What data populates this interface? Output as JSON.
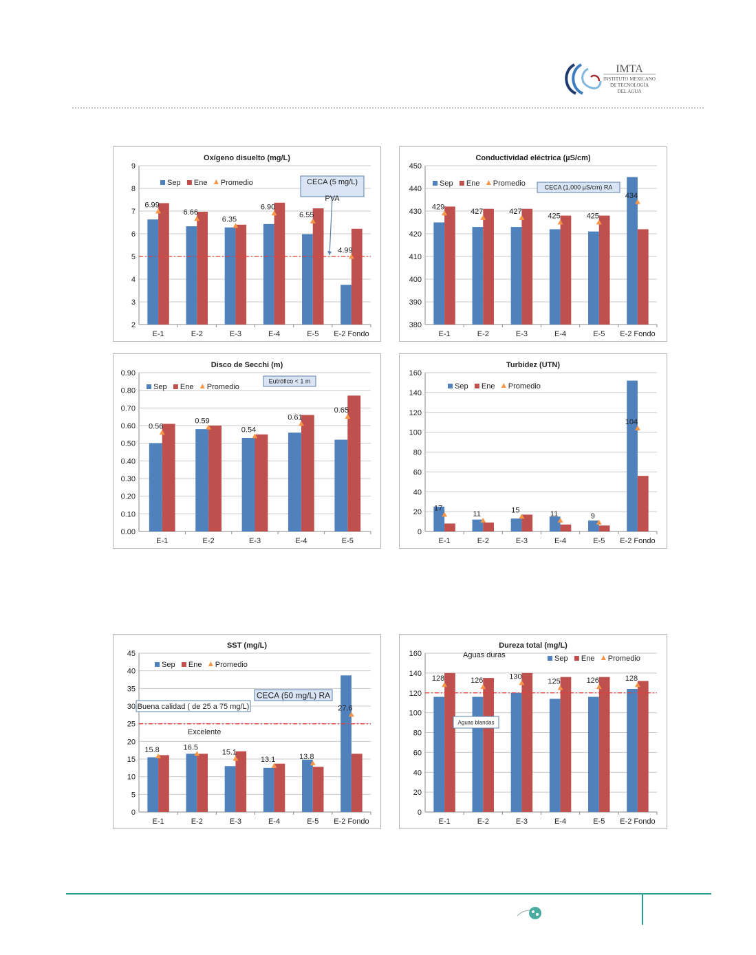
{
  "branding": {
    "org_short": "IMTA",
    "org_line1": "INSTITUTO MEXICANO",
    "org_line2": "DE TECNOLOGÍA",
    "org_line3": "DEL AGUA"
  },
  "colors": {
    "sep": "#4f81bd",
    "ene": "#c0504d",
    "promedio": "#f79646",
    "ref_line": "#e53935",
    "footer": "#2a9d8f"
  },
  "chart_data": [
    {
      "type": "bar",
      "title": "Oxígeno disuelto  (mg/L)",
      "categories": [
        "E-1",
        "E-2",
        "E-3",
        "E-4",
        "E-5",
        "E-2 Fondo"
      ],
      "series": [
        {
          "name": "Sep",
          "values": [
            6.63,
            6.33,
            6.28,
            6.43,
            5.98,
            3.75
          ]
        },
        {
          "name": "Ene",
          "values": [
            7.35,
            6.97,
            6.4,
            7.37,
            7.12,
            6.22
          ]
        }
      ],
      "promedio": {
        "name": "Promedio",
        "values": [
          6.99,
          6.66,
          6.35,
          6.9,
          6.55,
          4.99
        ]
      },
      "promedio_labels": [
        "6.99",
        "6.66",
        "6.35",
        "6.90",
        "6.55",
        "4.99"
      ],
      "ylim": [
        2,
        9
      ],
      "yticks": [
        2,
        3,
        4,
        5,
        6,
        7,
        8,
        9
      ],
      "tick_decimals": 0,
      "reference": {
        "value": 5
      },
      "annotations": [
        "CECA (5 mg/L)",
        "PVA"
      ]
    },
    {
      "type": "bar",
      "title": "Conductividad eléctrica  (µS/cm)",
      "categories": [
        "E-1",
        "E-2",
        "E-3",
        "E-4",
        "E-5",
        "E-2 Fondo"
      ],
      "series": [
        {
          "name": "Sep",
          "values": [
            425,
            423,
            423,
            422,
            421,
            445
          ]
        },
        {
          "name": "Ene",
          "values": [
            432,
            431,
            431,
            428,
            428,
            422
          ]
        }
      ],
      "promedio": {
        "name": "Promedio",
        "values": [
          429,
          427,
          427,
          425,
          425,
          434
        ]
      },
      "promedio_labels": [
        "429",
        "427",
        "427",
        "425",
        "425",
        "434"
      ],
      "ylim": [
        380,
        450
      ],
      "yticks": [
        380,
        390,
        400,
        410,
        420,
        430,
        440,
        450
      ],
      "tick_decimals": 0,
      "annotations": [
        "CECA (1,000 µS/cm) RA"
      ]
    },
    {
      "type": "bar",
      "title": "Disco de Secchi  (m)",
      "categories": [
        "E-1",
        "E-2",
        "E-3",
        "E-4",
        "E-5"
      ],
      "series": [
        {
          "name": "Sep",
          "values": [
            0.5,
            0.58,
            0.53,
            0.56,
            0.52
          ]
        },
        {
          "name": "Ene",
          "values": [
            0.61,
            0.6,
            0.55,
            0.66,
            0.77
          ]
        }
      ],
      "promedio": {
        "name": "Promedio",
        "values": [
          0.56,
          0.59,
          0.54,
          0.61,
          0.65
        ]
      },
      "promedio_labels": [
        "0.56",
        "0.59",
        "0.54",
        "0.61",
        "0.65"
      ],
      "ylim": [
        0,
        0.9
      ],
      "yticks": [
        0,
        0.1,
        0.2,
        0.3,
        0.4,
        0.5,
        0.6,
        0.7,
        0.8,
        0.9
      ],
      "tick_decimals": 2,
      "annotations": [
        "Eutrófico  < 1 m"
      ]
    },
    {
      "type": "bar",
      "title": "Turbidez  (UTN)",
      "categories": [
        "E-1",
        "E-2",
        "E-3",
        "E-4",
        "E-5",
        "E-2 Fondo"
      ],
      "series": [
        {
          "name": "Sep",
          "values": [
            25,
            12,
            13,
            15,
            11,
            152
          ]
        },
        {
          "name": "Ene",
          "values": [
            8,
            9,
            17,
            7,
            6,
            56
          ]
        }
      ],
      "promedio": {
        "name": "Promedio",
        "values": [
          17,
          11,
          15,
          11,
          9,
          104
        ]
      },
      "promedio_labels": [
        "17",
        "11",
        "15",
        "11",
        "9",
        "104"
      ],
      "ylim": [
        0,
        160
      ],
      "yticks": [
        0,
        20,
        40,
        60,
        80,
        100,
        120,
        140,
        160
      ],
      "tick_decimals": 0,
      "annotations": []
    },
    {
      "type": "bar",
      "title": "SST  (mg/L)",
      "categories": [
        "E-1",
        "E-2",
        "E-3",
        "E-4",
        "E-5",
        "E-2 Fondo"
      ],
      "series": [
        {
          "name": "Sep",
          "values": [
            15.5,
            16.5,
            13.0,
            12.5,
            14.8,
            38.7
          ]
        },
        {
          "name": "Ene",
          "values": [
            16.1,
            16.5,
            17.2,
            13.7,
            12.8,
            16.5
          ]
        }
      ],
      "promedio": {
        "name": "Promedio",
        "values": [
          15.8,
          16.5,
          15.1,
          13.1,
          13.8,
          27.6
        ]
      },
      "promedio_labels": [
        "15.8",
        "16.5",
        "15.1",
        "13.1",
        "13.8",
        "27.6"
      ],
      "ylim": [
        0,
        45
      ],
      "yticks": [
        0,
        5,
        10,
        15,
        20,
        25,
        30,
        35,
        40,
        45
      ],
      "tick_decimals": 0,
      "reference": {
        "value": 25
      },
      "annotations": [
        "CECA (50 mg/L) RA",
        "Buena calidad ( de 25 a 75 mg/L)",
        "Excelente"
      ]
    },
    {
      "type": "bar",
      "title": "Dureza total  (mg/L)",
      "categories": [
        "E-1",
        "E-2",
        "E-3",
        "E-4",
        "E-5",
        "E-2 Fondo"
      ],
      "series": [
        {
          "name": "Sep",
          "values": [
            116,
            116,
            120,
            114,
            116,
            124
          ]
        },
        {
          "name": "Ene",
          "values": [
            140,
            135,
            140,
            136,
            136,
            132
          ]
        }
      ],
      "promedio": {
        "name": "Promedio",
        "values": [
          128,
          126,
          130,
          125,
          126,
          128
        ]
      },
      "promedio_labels": [
        "128",
        "126",
        "130",
        "125",
        "126",
        "128"
      ],
      "ylim": [
        0,
        160
      ],
      "yticks": [
        0,
        20,
        40,
        60,
        80,
        100,
        120,
        140,
        160
      ],
      "tick_decimals": 0,
      "reference": {
        "value": 120
      },
      "annotations": [
        "Aguas duras",
        "Aguas blandas"
      ]
    }
  ]
}
